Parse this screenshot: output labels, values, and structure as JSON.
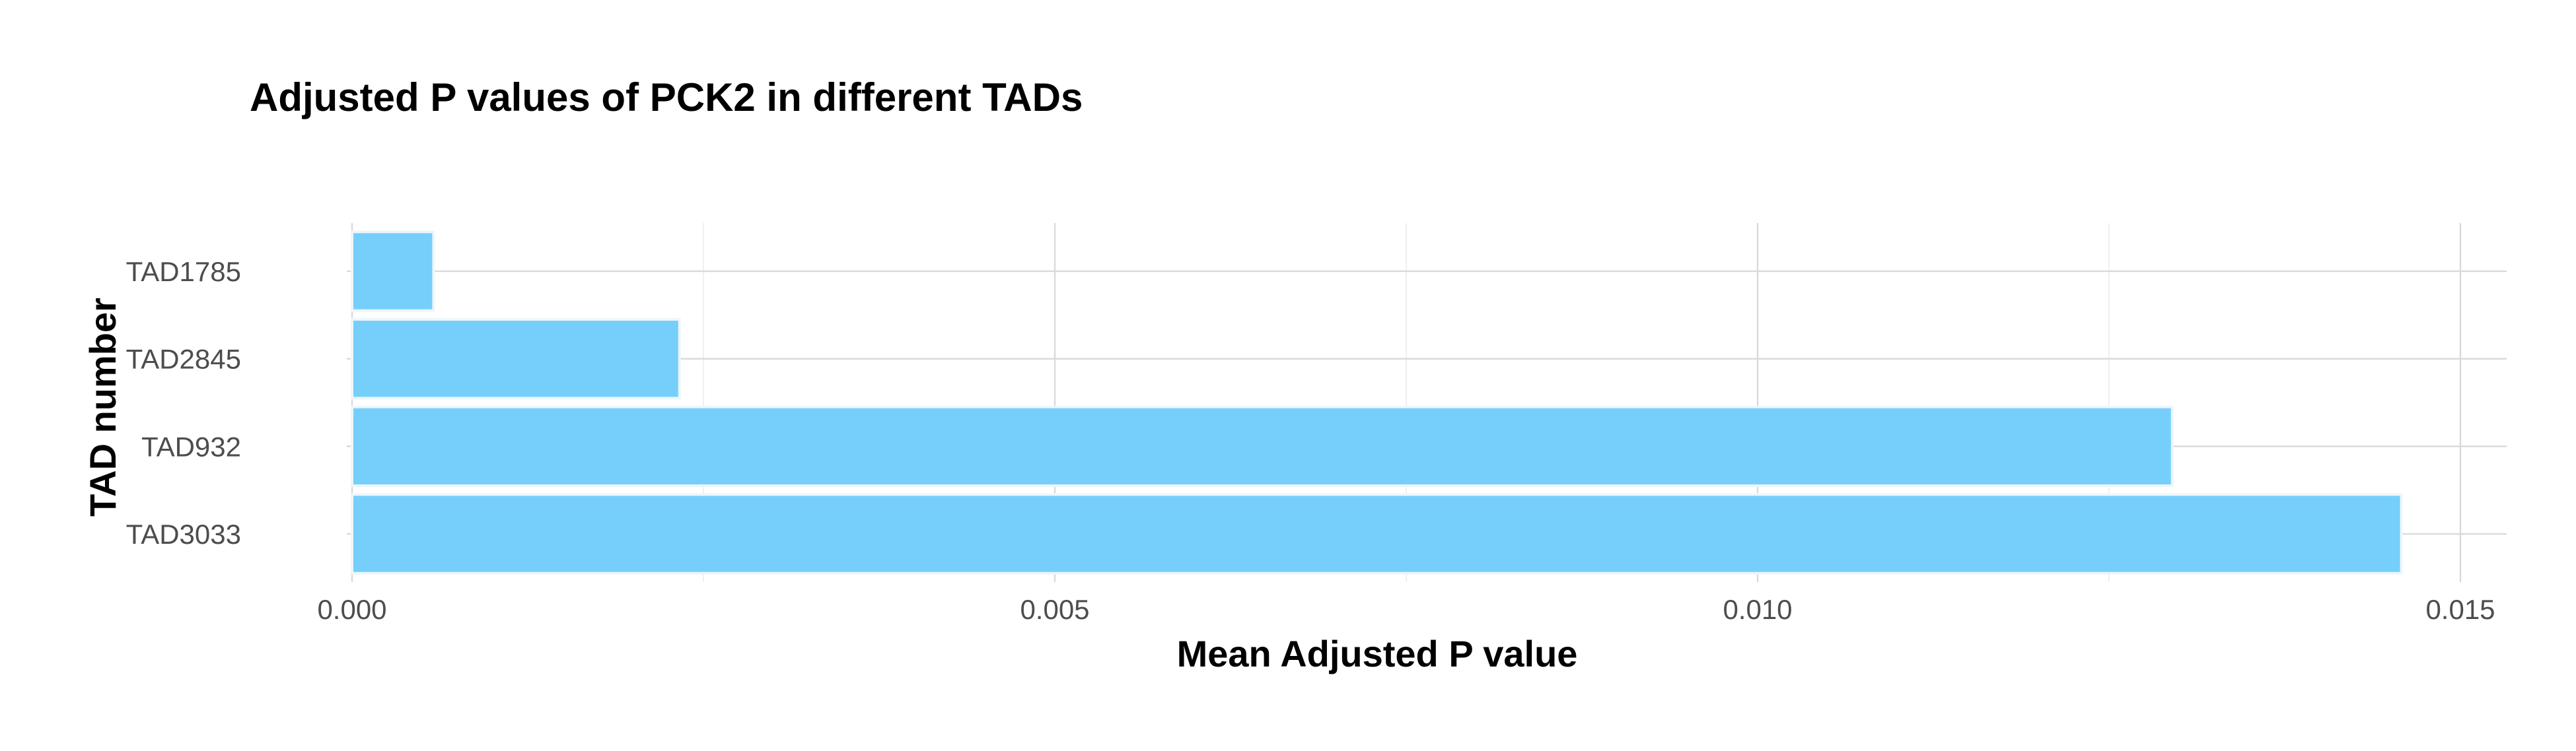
{
  "chart_data": {
    "type": "bar",
    "orientation": "horizontal",
    "title": "Adjusted P values of PCK2 in different TADs",
    "xlabel": "Mean Adjusted P value",
    "ylabel": "TAD number",
    "categories": [
      "TAD1785",
      "TAD2845",
      "TAD932",
      "TAD3033"
    ],
    "values": [
      0.00058,
      0.00233,
      0.01295,
      0.01458
    ],
    "xlim": [
      0,
      0.0151
    ],
    "x_ticks": [
      0,
      0.005,
      0.01,
      0.015
    ],
    "x_tick_labels": [
      "0.000",
      "0.005",
      "0.010",
      "0.015"
    ],
    "grid": true,
    "bar_color": "#76CFFB"
  }
}
